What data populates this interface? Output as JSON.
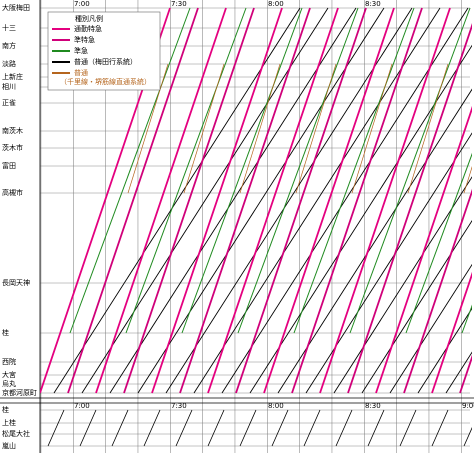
{
  "main_stations": [
    "大阪梅田",
    "十三",
    "南方",
    "淡路",
    "上新庄",
    "相川",
    "正雀",
    "南茨木",
    "茨木市",
    "富田",
    "高槻市",
    "長岡天神",
    "桂",
    "西院",
    "大宮",
    "烏丸",
    "京都河原町"
  ],
  "branch_stations": [
    "桂",
    "上桂",
    "松尾大社",
    "嵐山"
  ],
  "top_times": [
    "7:00",
    "7:30",
    "8:00",
    "8:30"
  ],
  "bottom_times": [
    "7:00",
    "7:30",
    "8:00",
    "8:30",
    "9:00"
  ],
  "legend": {
    "title": "種別凡例",
    "items": [
      {
        "label": "通勤特急",
        "color": "#e4007f"
      },
      {
        "label": "準特急",
        "color": "#d0007a"
      },
      {
        "label": "準急",
        "color": "#1f8a1f"
      },
      {
        "label": "普通（梅田行系統）",
        "color": "#000000"
      },
      {
        "label": "普通",
        "sub": "（千里線・堺筋線直通系統）",
        "color": "#b5651d"
      }
    ]
  }
}
